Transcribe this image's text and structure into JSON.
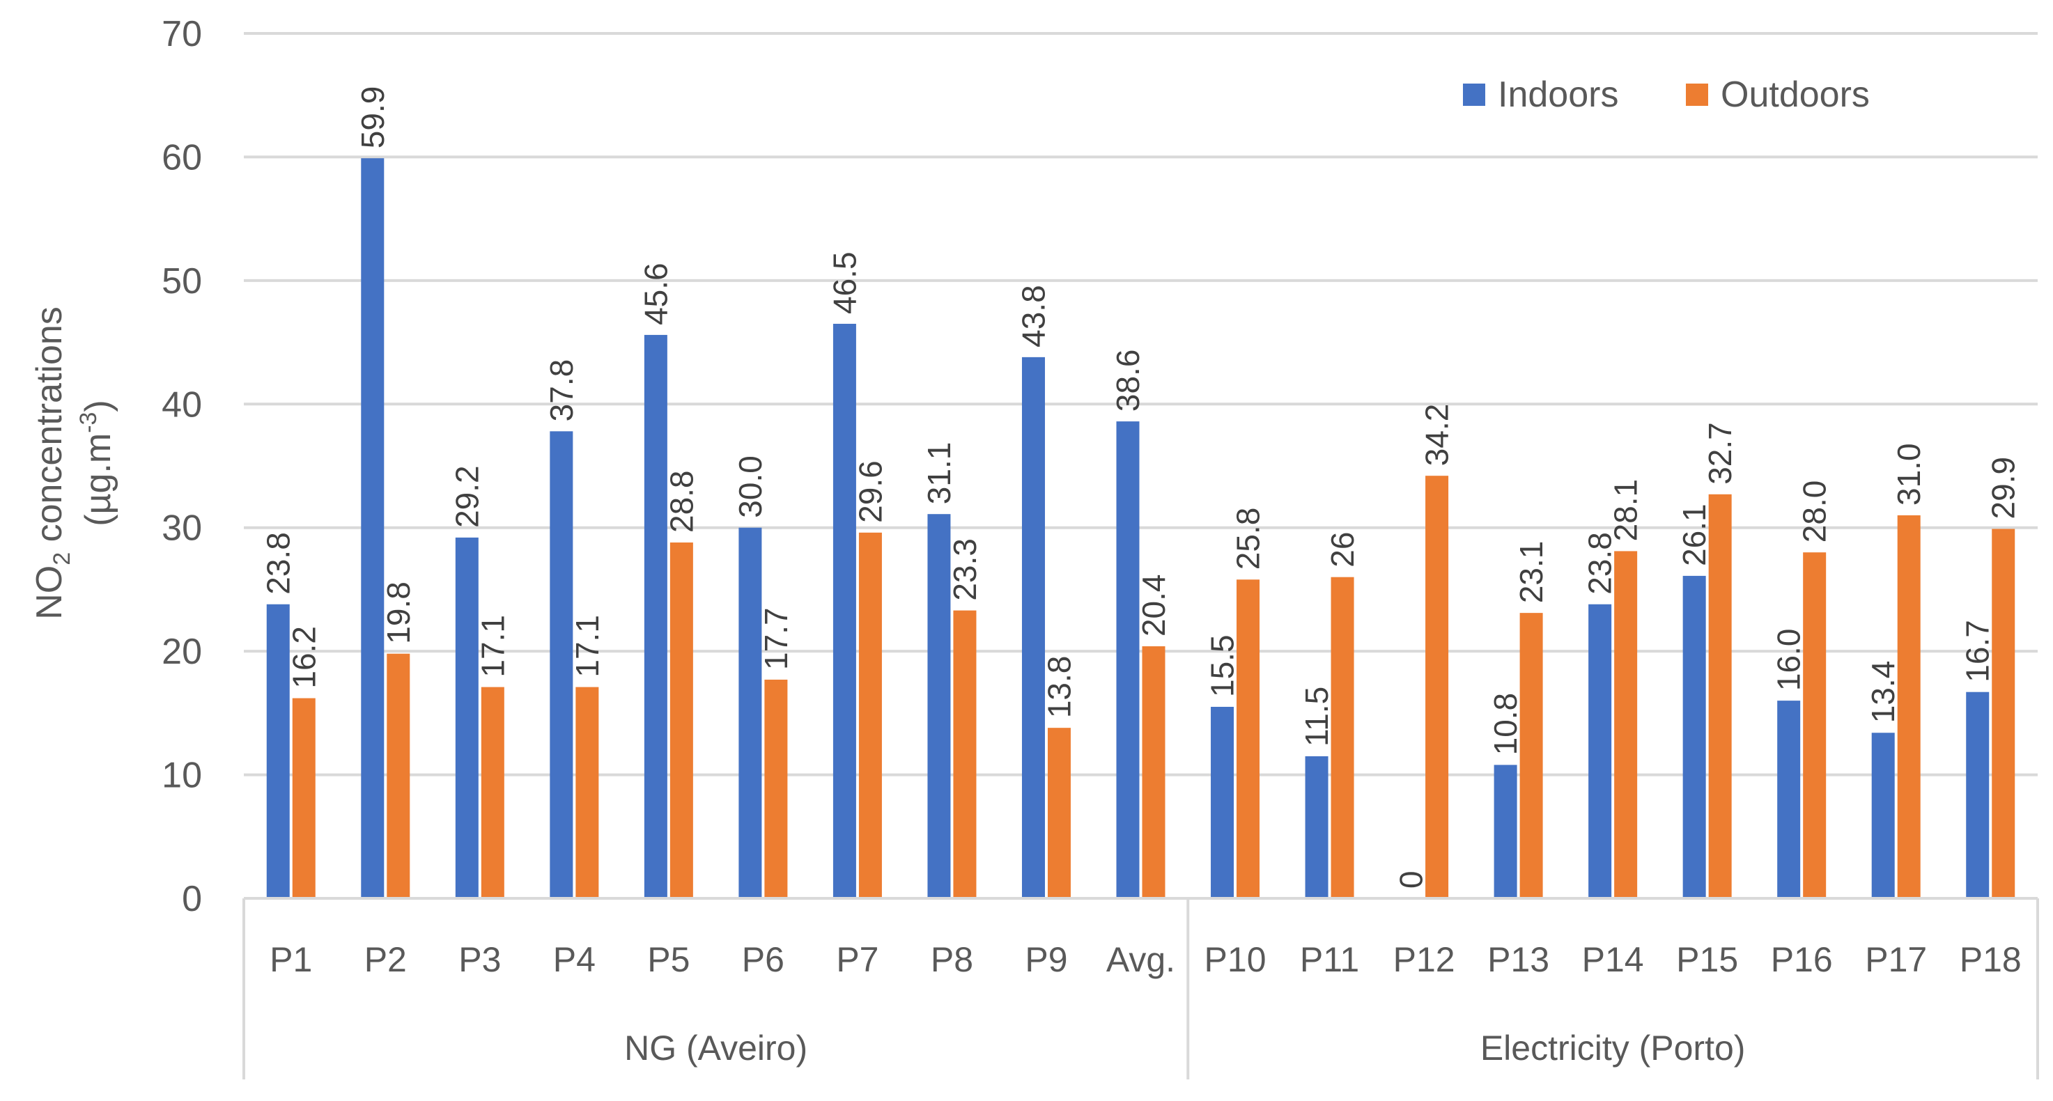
{
  "chart_data": {
    "type": "bar",
    "ylabel": {
      "line1_pre": "NO",
      "line1_sub": "2",
      "line1_post": " concentrations",
      "line2_pre": "(µg.m",
      "line2_sup": "-3",
      "line2_post": ")"
    },
    "ylim": [
      0,
      70
    ],
    "yticks": [
      0,
      10,
      20,
      30,
      40,
      50,
      60,
      70
    ],
    "grid": true,
    "legend_position": "top-right",
    "categories": [
      "P1",
      "P2",
      "P3",
      "P4",
      "P5",
      "P6",
      "P7",
      "P8",
      "P9",
      "Avg.",
      "P10",
      "P11",
      "P12",
      "P13",
      "P14",
      "P15",
      "P16",
      "P17",
      "P18"
    ],
    "groups": [
      {
        "label": "NG (Aveiro)",
        "start": 0,
        "count": 10
      },
      {
        "label": "Electricity (Porto)",
        "start": 10,
        "count": 9
      }
    ],
    "series": [
      {
        "name": "Indoors",
        "color": "#4472C4",
        "values": [
          23.8,
          59.9,
          29.2,
          37.8,
          45.6,
          30.0,
          46.5,
          31.1,
          43.8,
          38.6,
          15.5,
          11.5,
          0,
          10.8,
          23.8,
          26.1,
          16.0,
          13.4,
          16.7
        ],
        "labels": [
          "23.8",
          "59.9",
          "29.2",
          "37.8",
          "45.6",
          "30.0",
          "46.5",
          "31.1",
          "43.8",
          "38.6",
          "15.5",
          "11.5",
          "0",
          "10.8",
          "23.8",
          "26.1",
          "16.0",
          "13.4",
          "16.7"
        ]
      },
      {
        "name": "Outdoors",
        "color": "#ED7D31",
        "values": [
          16.2,
          19.8,
          17.1,
          17.1,
          28.8,
          17.7,
          29.6,
          23.3,
          13.8,
          20.4,
          25.8,
          26,
          34.2,
          23.1,
          28.1,
          32.7,
          28.0,
          31.0,
          29.9
        ],
        "labels": [
          "16.2",
          "19.8",
          "17.1",
          "17.1",
          "28.8",
          "17.7",
          "29.6",
          "23.3",
          "13.8",
          "20.4",
          "25.8",
          "26",
          "34.2",
          "23.1",
          "28.1",
          "32.7",
          "28.0",
          "31.0",
          "29.9"
        ]
      }
    ]
  }
}
